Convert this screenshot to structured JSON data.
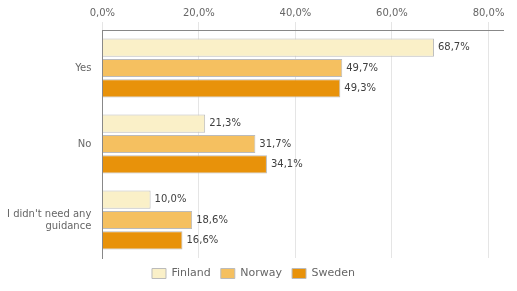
{
  "chart_data": {
    "type": "bar",
    "orientation": "horizontal",
    "categories": [
      "Yes",
      "No",
      "I didn't need any\nguidance"
    ],
    "series": [
      {
        "name": "Finland",
        "color": "#FAF0C8",
        "values": [
          68.7,
          21.3,
          10.0
        ],
        "value_labels": [
          "68,7%",
          "21,3%",
          "10,0%"
        ]
      },
      {
        "name": "Norway",
        "color": "#F5C060",
        "values": [
          49.7,
          31.7,
          18.6
        ],
        "value_labels": [
          "49,7%",
          "31,7%",
          "18,6%"
        ]
      },
      {
        "name": "Sweden",
        "color": "#E8920A",
        "values": [
          49.3,
          34.1,
          16.6
        ],
        "value_labels": [
          "49,3%",
          "34,1%",
          "16,6%"
        ]
      }
    ],
    "xlim": [
      0,
      83
    ],
    "xticks": [
      {
        "value": 0,
        "label": "0,0%"
      },
      {
        "value": 20,
        "label": "20,0%"
      },
      {
        "value": 40,
        "label": "40,0%"
      },
      {
        "value": 60,
        "label": "60,0%"
      },
      {
        "value": 80,
        "label": "80,0%"
      }
    ],
    "grid": true,
    "legend": "bottom",
    "data_labels": true
  }
}
